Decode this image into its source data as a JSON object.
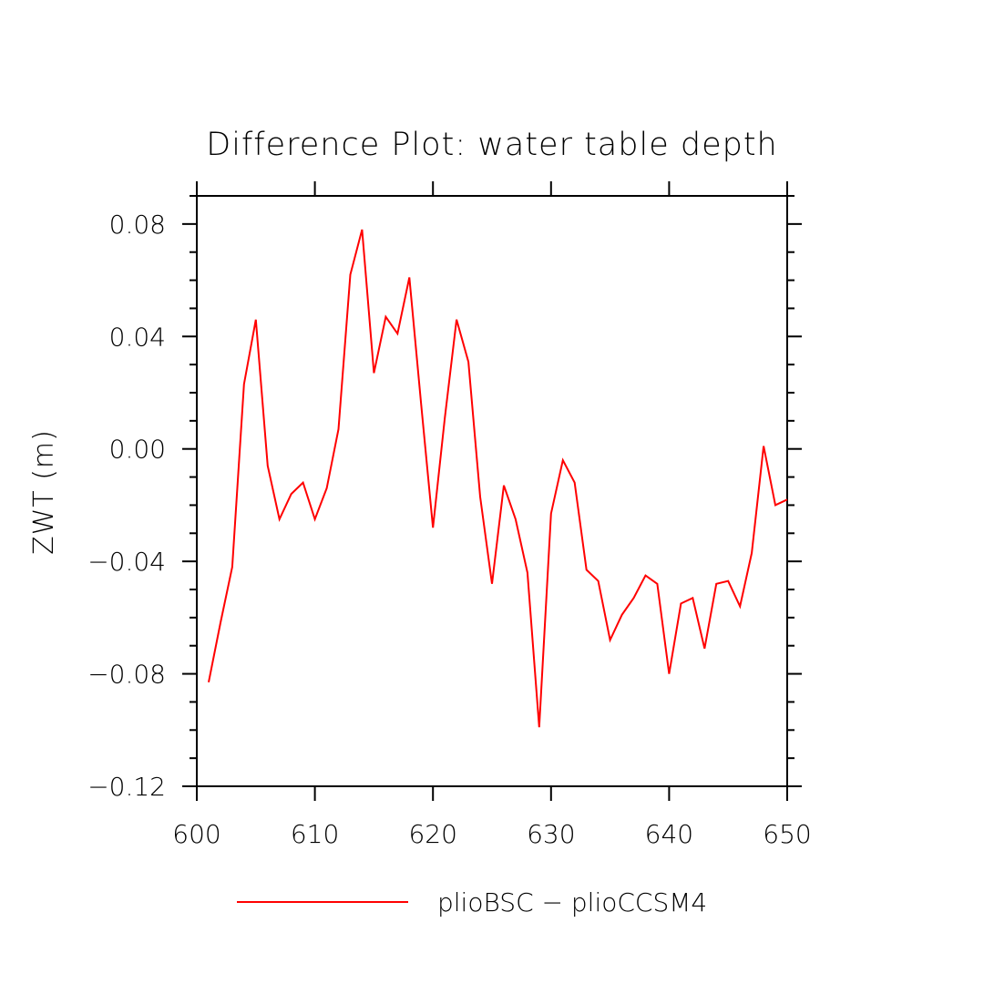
{
  "chart_data": {
    "type": "line",
    "title": "Difference Plot: water table depth",
    "xlabel": "",
    "ylabel": "ZWT   (m)",
    "xlim": [
      600,
      650
    ],
    "ylim": [
      -0.12,
      0.09
    ],
    "x_ticks": [
      600,
      610,
      620,
      630,
      640,
      650
    ],
    "x_tick_labels": [
      "600",
      "610",
      "620",
      "630",
      "640",
      "650"
    ],
    "y_ticks": [
      0.08,
      0.04,
      0.0,
      -0.04,
      -0.08,
      -0.12
    ],
    "y_tick_labels": [
      "0.08",
      "0.04",
      "0.00",
      "−0.04",
      "−0.08",
      "−0.12"
    ],
    "grid": false,
    "legend_position": "bottom",
    "colors": {
      "series": "#ff0000",
      "axes": "#000000"
    },
    "series": [
      {
        "name": "plioBSC − plioCCSM4",
        "x": [
          601,
          602,
          603,
          604,
          605,
          606,
          607,
          608,
          609,
          610,
          611,
          612,
          613,
          614,
          615,
          616,
          617,
          618,
          619,
          620,
          621,
          622,
          623,
          624,
          625,
          626,
          627,
          628,
          629,
          630,
          631,
          632,
          633,
          634,
          635,
          636,
          637,
          638,
          639,
          640,
          641,
          642,
          643,
          644,
          645,
          646,
          647,
          648,
          649,
          650
        ],
        "values": [
          -0.083,
          -0.062,
          -0.042,
          0.023,
          0.046,
          -0.006,
          -0.025,
          -0.016,
          -0.012,
          -0.025,
          -0.014,
          0.007,
          0.062,
          0.078,
          0.027,
          0.047,
          0.041,
          0.061,
          0.016,
          -0.028,
          0.011,
          0.046,
          0.031,
          -0.017,
          -0.048,
          -0.013,
          -0.025,
          -0.044,
          -0.099,
          -0.023,
          -0.004,
          -0.012,
          -0.043,
          -0.047,
          -0.068,
          -0.059,
          -0.053,
          -0.045,
          -0.048,
          -0.08,
          -0.055,
          -0.053,
          -0.071,
          -0.048,
          -0.047,
          -0.056,
          -0.037,
          0.001,
          -0.02,
          -0.018
        ]
      }
    ]
  }
}
